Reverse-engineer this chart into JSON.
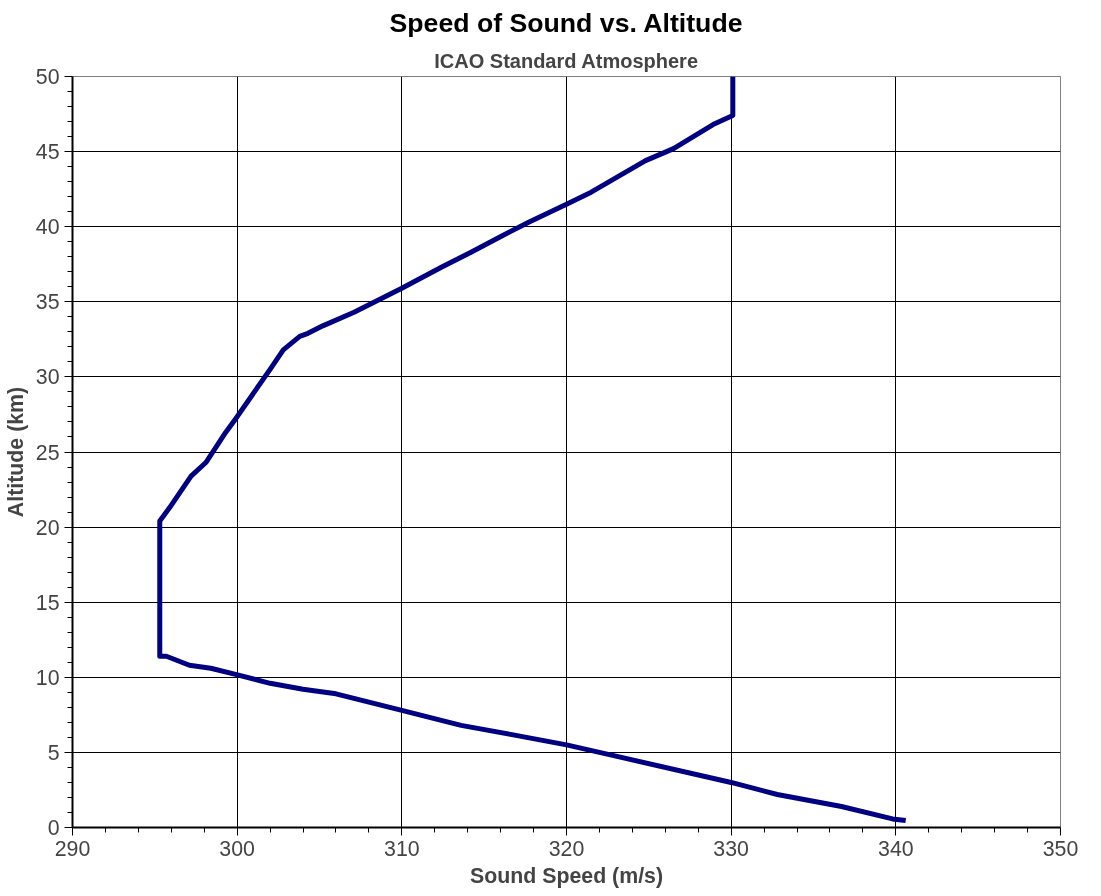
{
  "chart_data": {
    "type": "line",
    "title": "Speed of Sound vs. Altitude",
    "subtitle": "ICAO Standard Atmosphere",
    "xlabel": "Sound Speed (m/s)",
    "ylabel": "Altitude (km)",
    "xlim": [
      290,
      350
    ],
    "xticks": [
      290,
      300,
      310,
      320,
      330,
      340,
      350
    ],
    "ylim": [
      0,
      50
    ],
    "yticks": [
      0,
      5,
      10,
      15,
      20,
      25,
      30,
      35,
      40,
      45,
      50
    ],
    "grid": true,
    "marker": "none",
    "line_style": "solid",
    "series": [
      {
        "color": "#000080",
        "x": [
          340.6,
          339.8,
          336.7,
          332.8,
          330.0,
          323.0,
          320.0,
          316.6,
          313.6,
          310.0,
          306.0,
          304.0,
          302.0,
          299.9,
          298.4,
          297.1,
          295.7,
          295.3,
          295.3,
          295.9,
          297.2,
          298.1,
          299.3,
          299.9,
          302.0,
          302.8,
          303.8,
          304.3,
          305.2,
          307.1,
          310.0,
          312.4,
          314.2,
          316.1,
          317.7,
          320.0,
          321.5,
          324.8,
          326.5,
          328.9,
          330.1,
          330.1
        ],
        "values": [
          0.47,
          0.57,
          1.4,
          2.2,
          3.0,
          4.75,
          5.5,
          6.2,
          6.8,
          7.8,
          8.9,
          9.2,
          9.6,
          10.2,
          10.6,
          10.8,
          11.4,
          11.4,
          20.4,
          21.3,
          23.4,
          24.3,
          26.3,
          27.2,
          30.5,
          31.8,
          32.7,
          32.9,
          33.4,
          34.3,
          35.9,
          37.3,
          38.3,
          39.4,
          40.3,
          41.5,
          42.3,
          44.4,
          45.2,
          46.8,
          47.4,
          50.0
        ]
      }
    ]
  }
}
